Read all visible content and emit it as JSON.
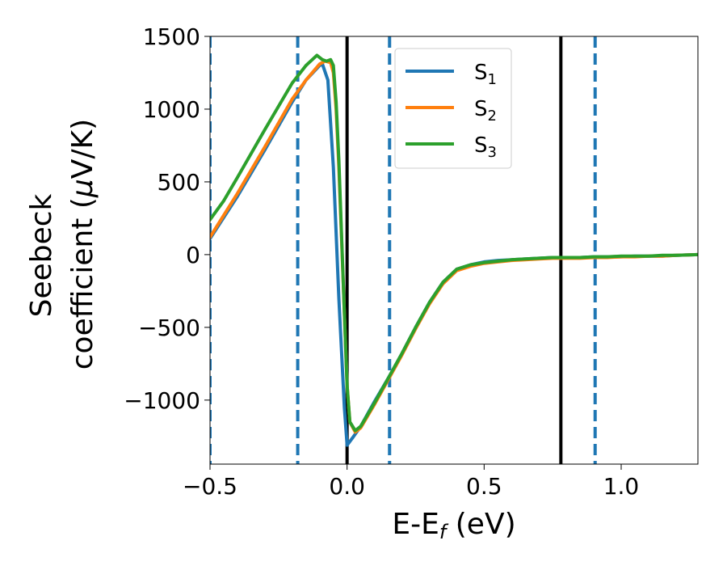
{
  "chart_data": {
    "type": "line",
    "xlabel": "E-E",
    "xlabel_sub": "f",
    "xlabel_unit": " (eV)",
    "ylabel_line1": "Seebeck",
    "ylabel_line2_pre": "coefficient  (",
    "ylabel_mu": "μ",
    "ylabel_line2_post": "V/K)",
    "xlim": [
      -0.5,
      1.28
    ],
    "ylim": [
      -1440,
      1500
    ],
    "xticks": [
      -0.5,
      0.0,
      0.5,
      1.0
    ],
    "xtick_labels": [
      "−0.5",
      "0.0",
      "0.5",
      "1.0"
    ],
    "yticks": [
      -1000,
      -500,
      0,
      500,
      1000,
      1500
    ],
    "ytick_labels": [
      "−1000",
      "−500",
      "0",
      "500",
      "1000",
      "1500"
    ],
    "grid": false,
    "legend_position": "top-center",
    "legend": [
      {
        "base": "S",
        "sub": "1"
      },
      {
        "base": "S",
        "sub": "2"
      },
      {
        "base": "S",
        "sub": "3"
      }
    ],
    "vlines_solid": [
      0.0,
      0.78
    ],
    "vlines_dashed": [
      -0.5,
      -0.18,
      0.155,
      0.905
    ],
    "vline_solid_color": "#000000",
    "vline_dashed_color": "#1f77b4",
    "series": [
      {
        "name": "S1",
        "color": "#1f77b4",
        "x": [
          -0.5,
          -0.4,
          -0.3,
          -0.2,
          -0.15,
          -0.1,
          -0.09,
          -0.07,
          -0.05,
          -0.03,
          -0.01,
          0.0,
          0.02,
          0.05,
          0.1,
          0.15,
          0.2,
          0.25,
          0.3,
          0.35,
          0.4,
          0.45,
          0.5,
          0.55,
          0.6,
          0.65,
          0.7,
          0.75,
          0.8,
          0.85,
          0.9,
          0.95,
          1.0,
          1.05,
          1.1,
          1.15,
          1.2,
          1.28
        ],
        "y": [
          110,
          400,
          720,
          1050,
          1200,
          1300,
          1310,
          1200,
          600,
          -300,
          -1050,
          -1310,
          -1260,
          -1180,
          -1010,
          -850,
          -680,
          -500,
          -330,
          -190,
          -100,
          -70,
          -50,
          -40,
          -35,
          -30,
          -25,
          -20,
          -20,
          -20,
          -15,
          -15,
          -15,
          -10,
          -10,
          -10,
          -5,
          0
        ]
      },
      {
        "name": "S2",
        "color": "#ff7f0e",
        "x": [
          -0.5,
          -0.4,
          -0.3,
          -0.2,
          -0.15,
          -0.1,
          -0.08,
          -0.06,
          -0.05,
          -0.04,
          -0.03,
          -0.01,
          0.0,
          0.01,
          0.03,
          0.05,
          0.1,
          0.15,
          0.2,
          0.25,
          0.3,
          0.35,
          0.4,
          0.45,
          0.5,
          0.55,
          0.6,
          0.65,
          0.7,
          0.75,
          0.8,
          0.85,
          0.9,
          0.95,
          1.0,
          1.05,
          1.1,
          1.15,
          1.2,
          1.28
        ],
        "y": [
          120,
          420,
          740,
          1070,
          1200,
          1310,
          1330,
          1320,
          1250,
          1000,
          600,
          -400,
          -900,
          -1150,
          -1220,
          -1190,
          -1030,
          -860,
          -690,
          -510,
          -340,
          -200,
          -110,
          -80,
          -60,
          -50,
          -40,
          -35,
          -30,
          -25,
          -25,
          -25,
          -20,
          -20,
          -15,
          -15,
          -10,
          -10,
          -5,
          0
        ]
      },
      {
        "name": "S3",
        "color": "#2ca02c",
        "x": [
          -0.5,
          -0.45,
          -0.4,
          -0.3,
          -0.2,
          -0.15,
          -0.11,
          -0.09,
          -0.075,
          -0.06,
          -0.05,
          -0.04,
          -0.03,
          -0.01,
          0.0,
          0.01,
          0.03,
          0.05,
          0.1,
          0.15,
          0.2,
          0.25,
          0.3,
          0.35,
          0.4,
          0.45,
          0.5,
          0.55,
          0.6,
          0.65,
          0.7,
          0.75,
          0.8,
          0.85,
          0.9,
          0.95,
          1.0,
          1.05,
          1.1,
          1.15,
          1.2,
          1.28
        ],
        "y": [
          240,
          370,
          530,
          860,
          1180,
          1300,
          1370,
          1340,
          1330,
          1340,
          1300,
          1050,
          650,
          -400,
          -900,
          -1150,
          -1210,
          -1180,
          -1020,
          -850,
          -680,
          -500,
          -330,
          -190,
          -100,
          -70,
          -55,
          -45,
          -35,
          -30,
          -25,
          -20,
          -20,
          -20,
          -15,
          -15,
          -10,
          -10,
          -10,
          -5,
          -5,
          0
        ]
      }
    ]
  }
}
